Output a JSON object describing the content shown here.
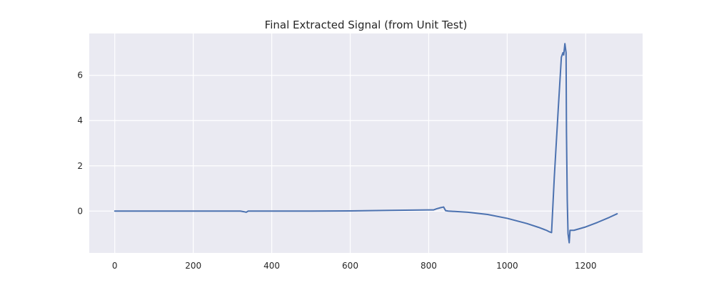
{
  "chart_data": {
    "type": "line",
    "title": "Final Extracted Signal (from Unit Test)",
    "xlabel": "",
    "ylabel": "",
    "xlim": [
      -65,
      1345
    ],
    "ylim": [
      -1.85,
      7.85
    ],
    "x_ticks": [
      0,
      200,
      400,
      600,
      800,
      1000,
      1200
    ],
    "y_ticks": [
      0,
      2,
      4,
      6
    ],
    "grid": true,
    "legend": "none",
    "colors": {
      "background": "#eaeaf2",
      "grid": "#ffffff",
      "line": "#4c72b0",
      "text": "#262626"
    },
    "series": [
      {
        "x": [
          0,
          100,
          200,
          300,
          320,
          330,
          335,
          340,
          400,
          500,
          600,
          700,
          800,
          812,
          820,
          830,
          838,
          843,
          850,
          900,
          950,
          1000,
          1050,
          1080,
          1100,
          1108,
          1113,
          1120,
          1130,
          1138,
          1142,
          1144,
          1147,
          1150,
          1151,
          1153,
          1155,
          1158,
          1160,
          1170,
          1200,
          1230,
          1260,
          1280
        ],
        "y": [
          0.0,
          0.0,
          0.0,
          0.0,
          0.0,
          -0.03,
          -0.05,
          0.0,
          0.0,
          0.0,
          0.01,
          0.03,
          0.05,
          0.05,
          0.1,
          0.15,
          0.18,
          0.02,
          0.0,
          -0.05,
          -0.15,
          -0.32,
          -0.55,
          -0.72,
          -0.85,
          -0.92,
          -0.95,
          1.5,
          4.5,
          6.8,
          7.0,
          6.9,
          7.4,
          7.0,
          3.5,
          0.5,
          -1.0,
          -1.4,
          -0.85,
          -0.85,
          -0.7,
          -0.5,
          -0.28,
          -0.12
        ]
      }
    ]
  }
}
